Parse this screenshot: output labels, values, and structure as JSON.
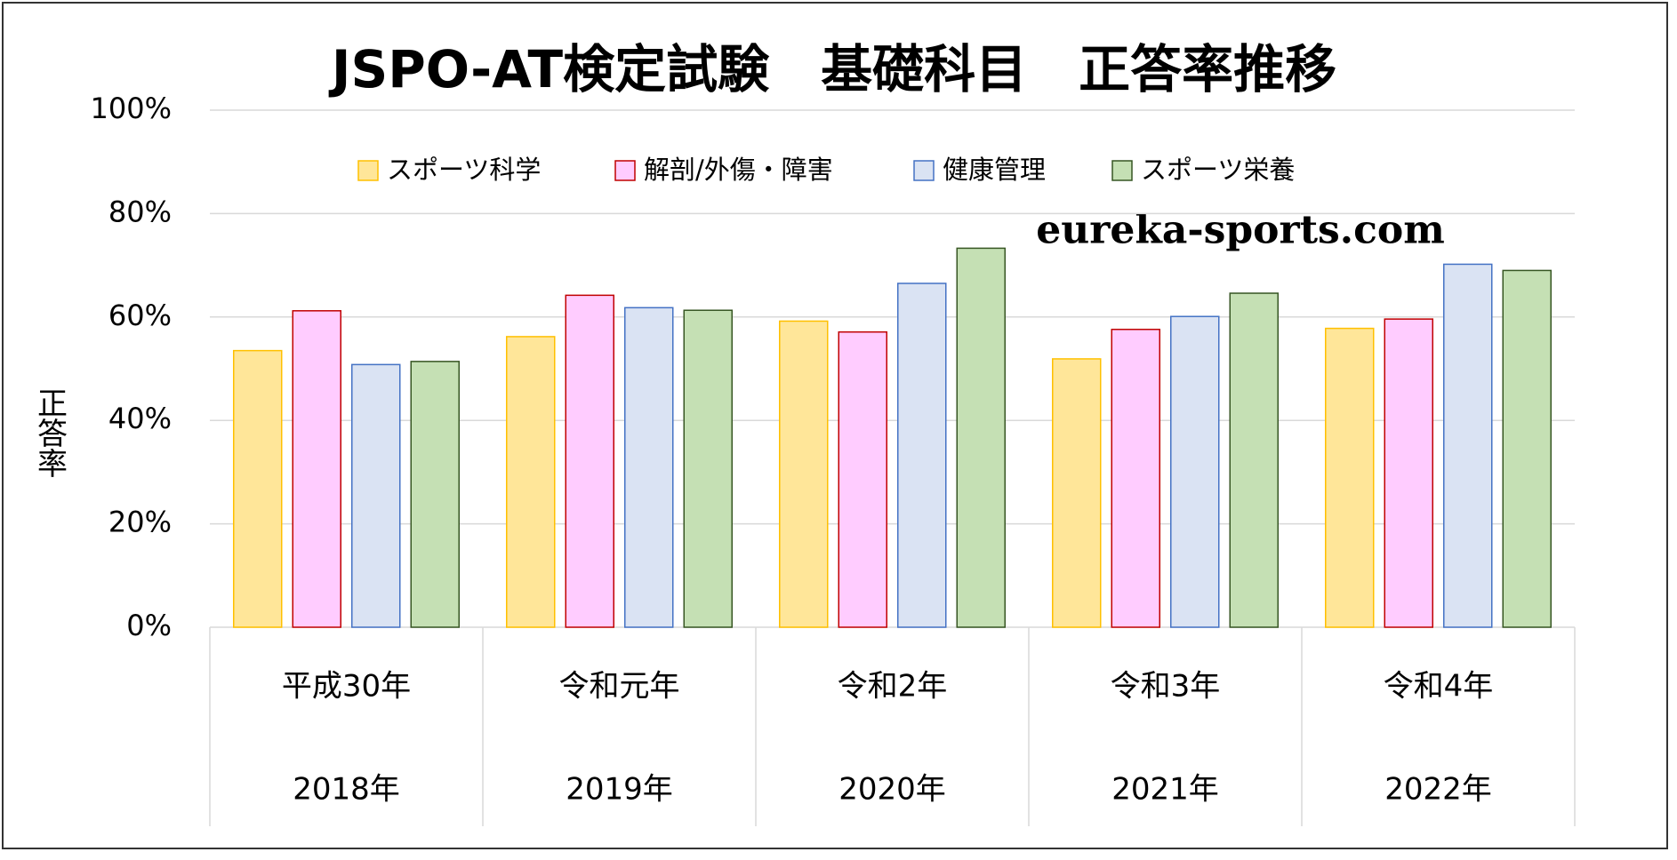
{
  "chart_data": {
    "type": "bar",
    "title": "JSPO-AT検定試験　基礎科目　正答率推移",
    "y_label": "正答率",
    "annotation": "eureka-sports.com",
    "categories": [
      [
        "平成30年",
        "2018年"
      ],
      [
        "令和元年",
        "2019年"
      ],
      [
        "令和2年",
        "2020年"
      ],
      [
        "令和3年",
        "2021年"
      ],
      [
        "令和4年",
        "2022年"
      ]
    ],
    "series": [
      {
        "name": "スポーツ科学",
        "color": "#ffe699",
        "edge": "#ffc000",
        "values": [
          53.5,
          56.2,
          59.2,
          51.9,
          57.8
        ]
      },
      {
        "name": "解剖/外傷・障害",
        "color": "#ffccff",
        "edge": "#c00000",
        "values": [
          61.2,
          64.2,
          57.1,
          57.6,
          59.6
        ]
      },
      {
        "name": "健康管理",
        "color": "#dae3f3",
        "edge": "#4472c4",
        "values": [
          50.8,
          61.8,
          66.5,
          60.1,
          70.2
        ]
      },
      {
        "name": "スポーツ栄養",
        "color": "#c5e0b4",
        "edge": "#375623",
        "values": [
          51.4,
          61.3,
          73.3,
          64.6,
          69.0
        ]
      }
    ],
    "ylim": [
      0,
      100
    ],
    "yticks": [
      {
        "value": 0,
        "label": "0%"
      },
      {
        "value": 20,
        "label": "20%"
      },
      {
        "value": 40,
        "label": "40%"
      },
      {
        "value": 60,
        "label": "60%"
      },
      {
        "value": 80,
        "label": "80%"
      },
      {
        "value": 100,
        "label": "100%"
      }
    ],
    "grid": true,
    "legend": "top"
  }
}
